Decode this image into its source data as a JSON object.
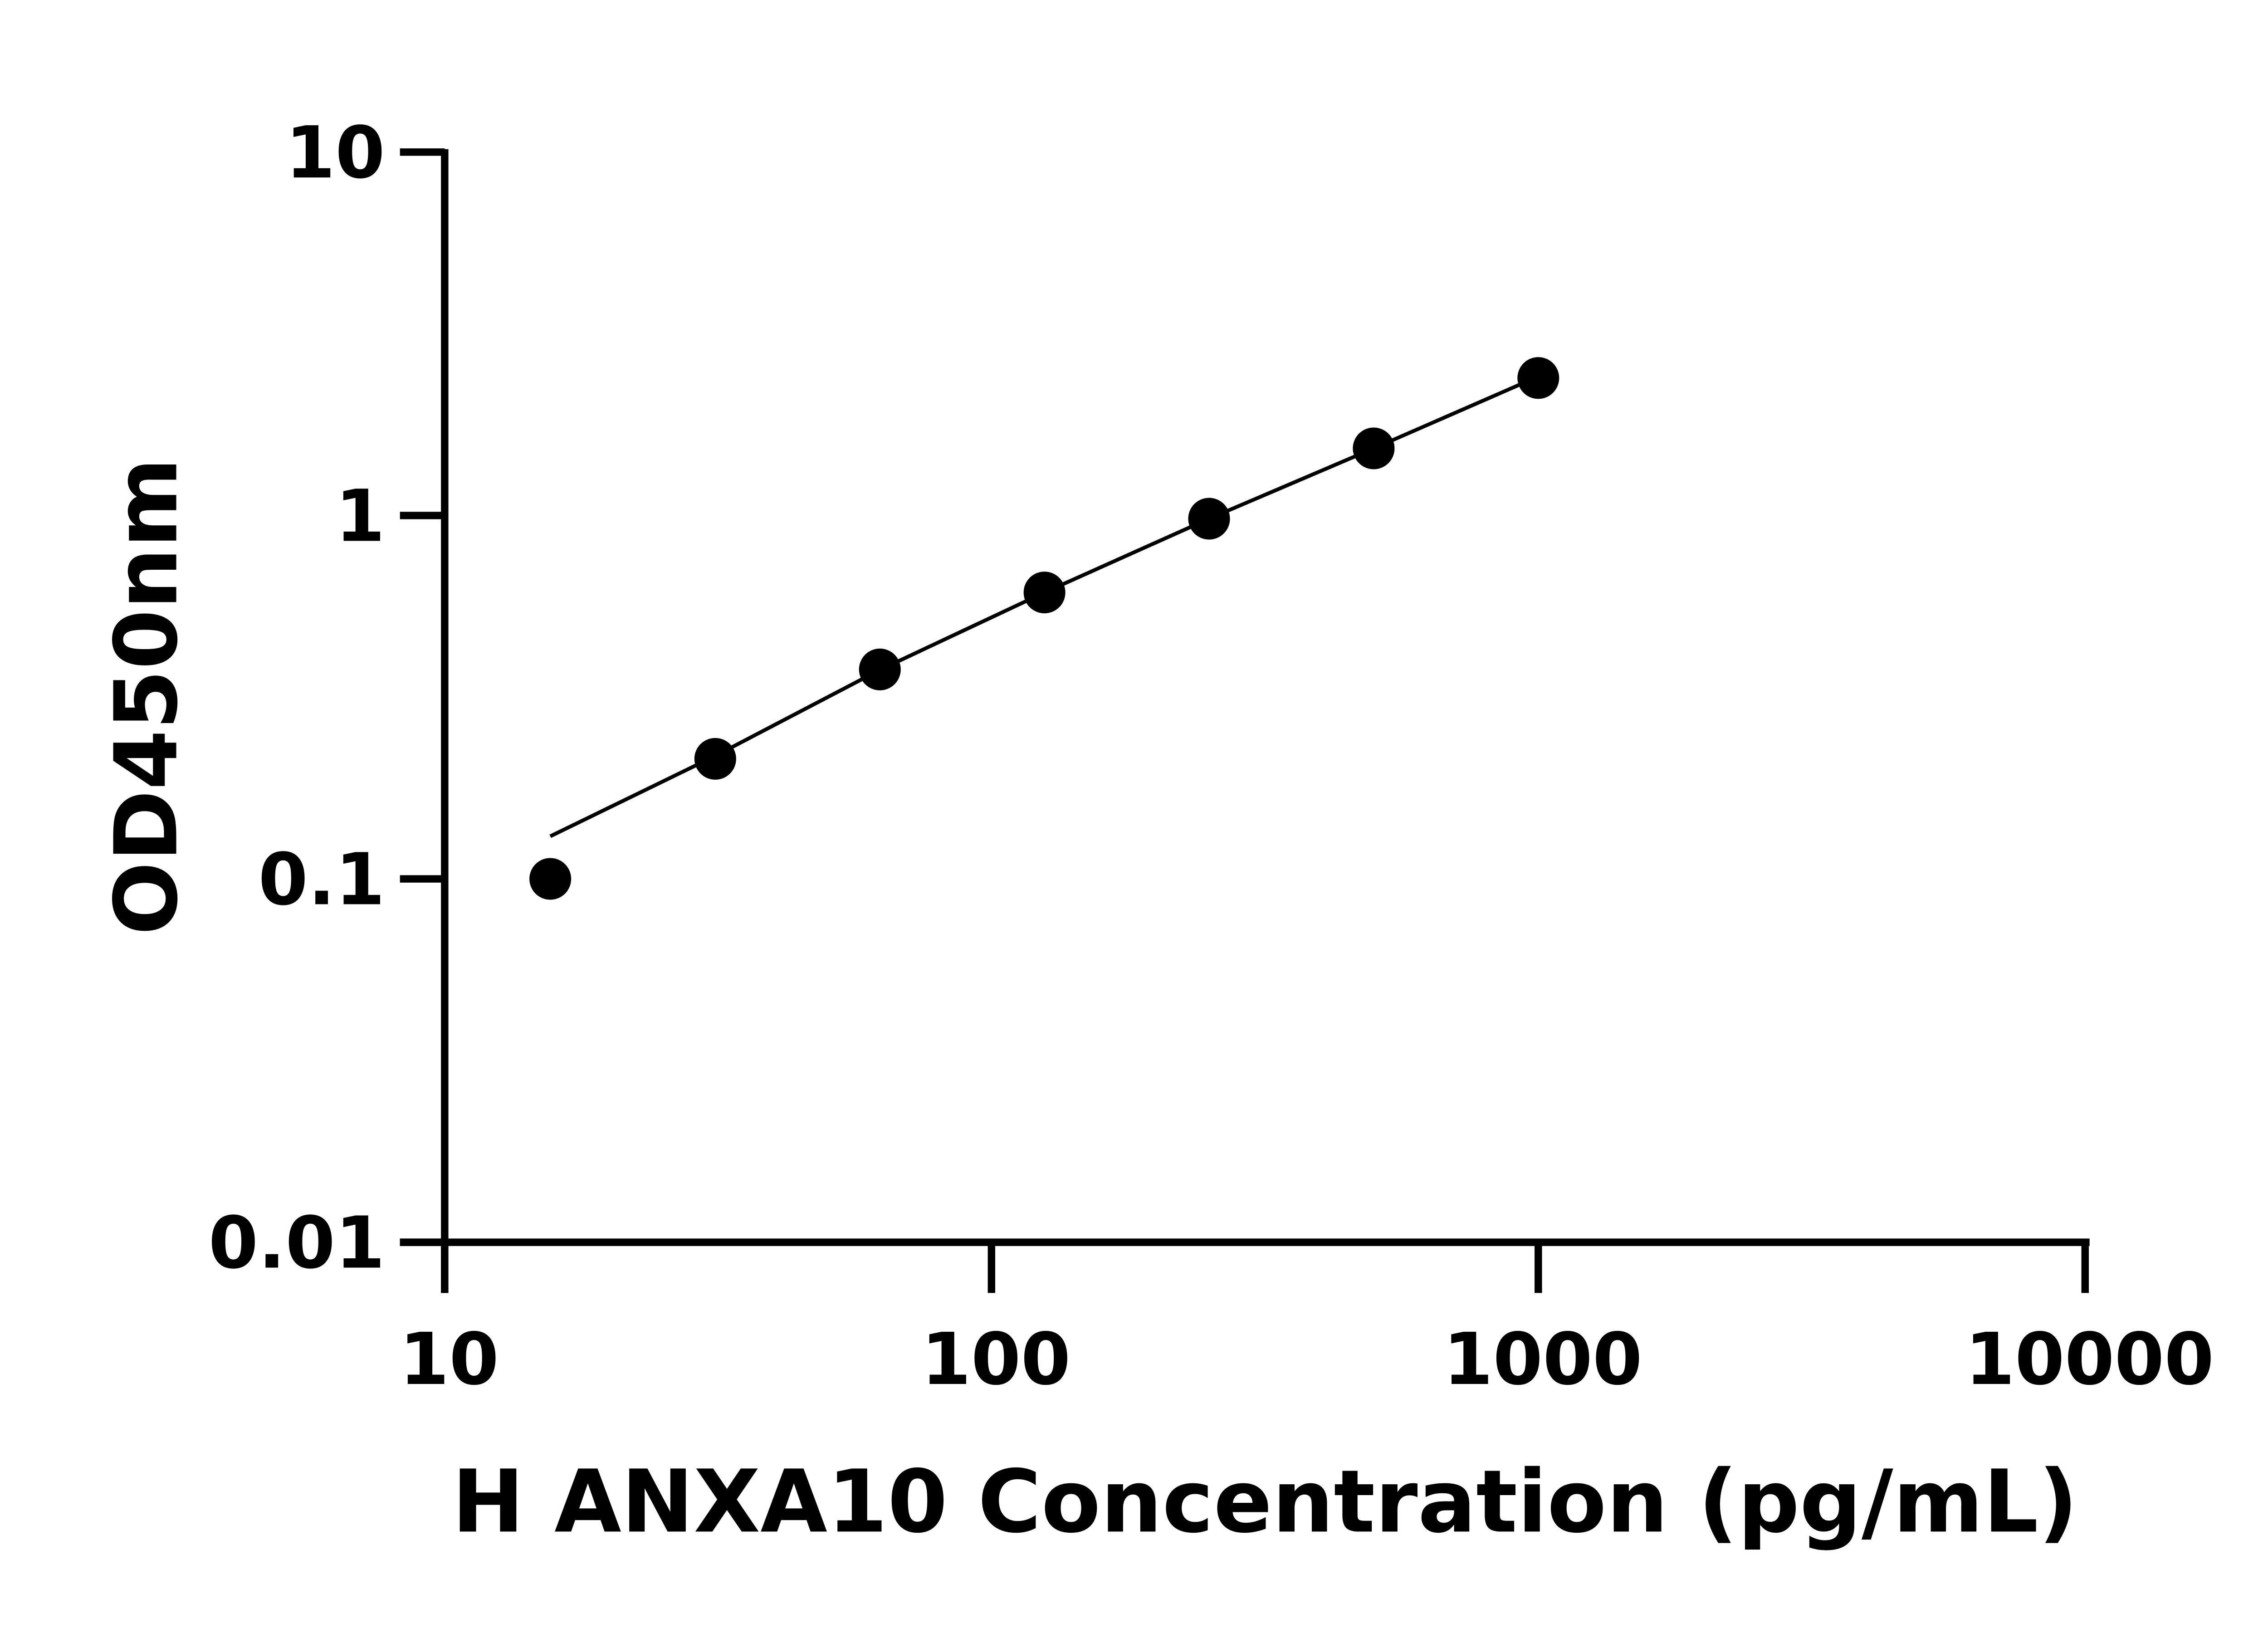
{
  "chart_data": {
    "type": "scatter",
    "title": "",
    "xlabel": "H ANXA10 Concentration (pg/mL)",
    "ylabel": "OD450nm",
    "x_scale": "log",
    "y_scale": "log",
    "xlim": [
      10,
      10000
    ],
    "ylim": [
      0.01,
      10
    ],
    "x_ticks": [
      "10",
      "100",
      "1000",
      "10000"
    ],
    "y_ticks": [
      "10",
      "1",
      "0.1",
      "0.01"
    ],
    "grid": false,
    "legend": "none",
    "color": "#000000",
    "points": {
      "x": [
        15.6,
        31.25,
        62.5,
        125,
        250,
        500,
        1000
      ],
      "y": [
        0.1,
        0.214,
        0.377,
        0.614,
        0.98,
        1.53,
        2.39
      ]
    },
    "fit_line": {
      "x": [
        15.6,
        31.25,
        62.5,
        125,
        250,
        500,
        930
      ],
      "y": [
        0.131,
        0.218,
        0.376,
        0.614,
        0.98,
        1.53,
        2.3
      ]
    }
  }
}
